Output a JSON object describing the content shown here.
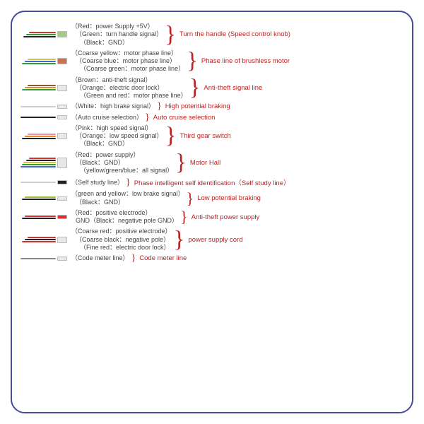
{
  "border_color": "#4a4a9e",
  "label_color": "#444444",
  "title_color": "#bb2222",
  "background": "#ffffff",
  "font_size_label": 9,
  "font_size_title": 9.5,
  "rows": [
    {
      "wires": [
        {
          "color": "#d93030",
          "len": 38
        },
        {
          "color": "#2e9e3a",
          "len": 42
        },
        {
          "color": "#222222",
          "len": 46
        }
      ],
      "plug_color": "#9ed080",
      "labels": [
        "（Red：power Supply +5V）",
        "（Green：turn handle signal）",
        "（Black：GND）"
      ],
      "title": "Turn the handle (Speed control knob)"
    },
    {
      "wires": [
        {
          "color": "#d8c23a",
          "len": 40
        },
        {
          "color": "#3a6ad8",
          "len": 44
        },
        {
          "color": "#2e9e3a",
          "len": 48
        }
      ],
      "plug_color": "#d07050",
      "labels": [
        "（Coarse yellow：motor phase line）",
        "（Coarse blue：motor phase line）",
        "（Coarse green：motor phase line）"
      ],
      "title": "Phase line of brushless motor"
    },
    {
      "wires": [
        {
          "color": "#8a5a2a",
          "len": 40
        },
        {
          "color": "#e88a2a",
          "len": 44
        },
        {
          "color": "#2e9e3a",
          "len": 48
        }
      ],
      "plug_color": "#e8e8e8",
      "labels": [
        "（Brown：anti-theft signal）",
        "（Orange：electric door lock）",
        "（Green and red：motor phase line）"
      ],
      "title": "Anti-theft signal line"
    },
    {
      "wires": [
        {
          "color": "#eeeeee",
          "len": 50
        }
      ],
      "plug_color": "#e8e8e8",
      "labels": [
        "（White：high brake signal）"
      ],
      "title": "High potential braking"
    },
    {
      "wires": [
        {
          "color": "#222222",
          "len": 50
        }
      ],
      "plug_color": "#e8e8e8",
      "labels": [
        "（Auto cruise selection）"
      ],
      "title": "Auto cruise selection"
    },
    {
      "wires": [
        {
          "color": "#e890b8",
          "len": 40
        },
        {
          "color": "#e88a2a",
          "len": 44
        },
        {
          "color": "#222222",
          "len": 48
        }
      ],
      "plug_color": "#e8e8e8",
      "labels": [
        "（Pink：high speed signal）",
        "（Orange：low speed signal）",
        "（Black：GND）"
      ],
      "title": "Third gear switch"
    },
    {
      "wires": [
        {
          "color": "#d93030",
          "len": 38
        },
        {
          "color": "#222222",
          "len": 42
        },
        {
          "color": "#d8c23a",
          "len": 46
        },
        {
          "color": "#2e9e3a",
          "len": 48
        },
        {
          "color": "#3a6ad8",
          "len": 50
        }
      ],
      "plug_color": "#e8e8e8",
      "labels": [
        "（Red：power supply）",
        "（Black：GND）",
        "（yellow/green/blue：all signal）"
      ],
      "title": "Motor Hall"
    },
    {
      "wires": [
        {
          "color": "#eeeeee",
          "len": 50
        }
      ],
      "plug_color": "#222222",
      "labels": [
        "（Self study line）"
      ],
      "title": "Phase intelligent self identification（Self study line）"
    },
    {
      "wires": [
        {
          "color": "#9ec23a",
          "len": 44
        },
        {
          "color": "#222222",
          "len": 48
        }
      ],
      "plug_color": "#e8e8e8",
      "labels": [
        "（green and yellow：low brake signal）",
        "（Black：GND）"
      ],
      "title": "Low potential braking"
    },
    {
      "wires": [
        {
          "color": "#d93030",
          "len": 44
        },
        {
          "color": "#222222",
          "len": 48
        }
      ],
      "plug_color": "#d93030",
      "labels": [
        "（Red：positive electrode）",
        "GND（Black：negative pole GND）"
      ],
      "title": "Anti-theft power supply"
    },
    {
      "wires": [
        {
          "color": "#d93030",
          "len": 40
        },
        {
          "color": "#222222",
          "len": 44
        },
        {
          "color": "#d93030",
          "len": 48
        }
      ],
      "plug_color": "#e8e8e8",
      "labels": [
        "（Coarse red：positive electrode）",
        "（Coarse black：negative pole）",
        "（Fine red：electric door lock）"
      ],
      "title": "power supply cord"
    },
    {
      "wires": [
        {
          "color": "#888888",
          "len": 50
        }
      ],
      "plug_color": "#e8e8e8",
      "labels": [
        "（Code meter line）"
      ],
      "title": "Code meter line"
    }
  ]
}
